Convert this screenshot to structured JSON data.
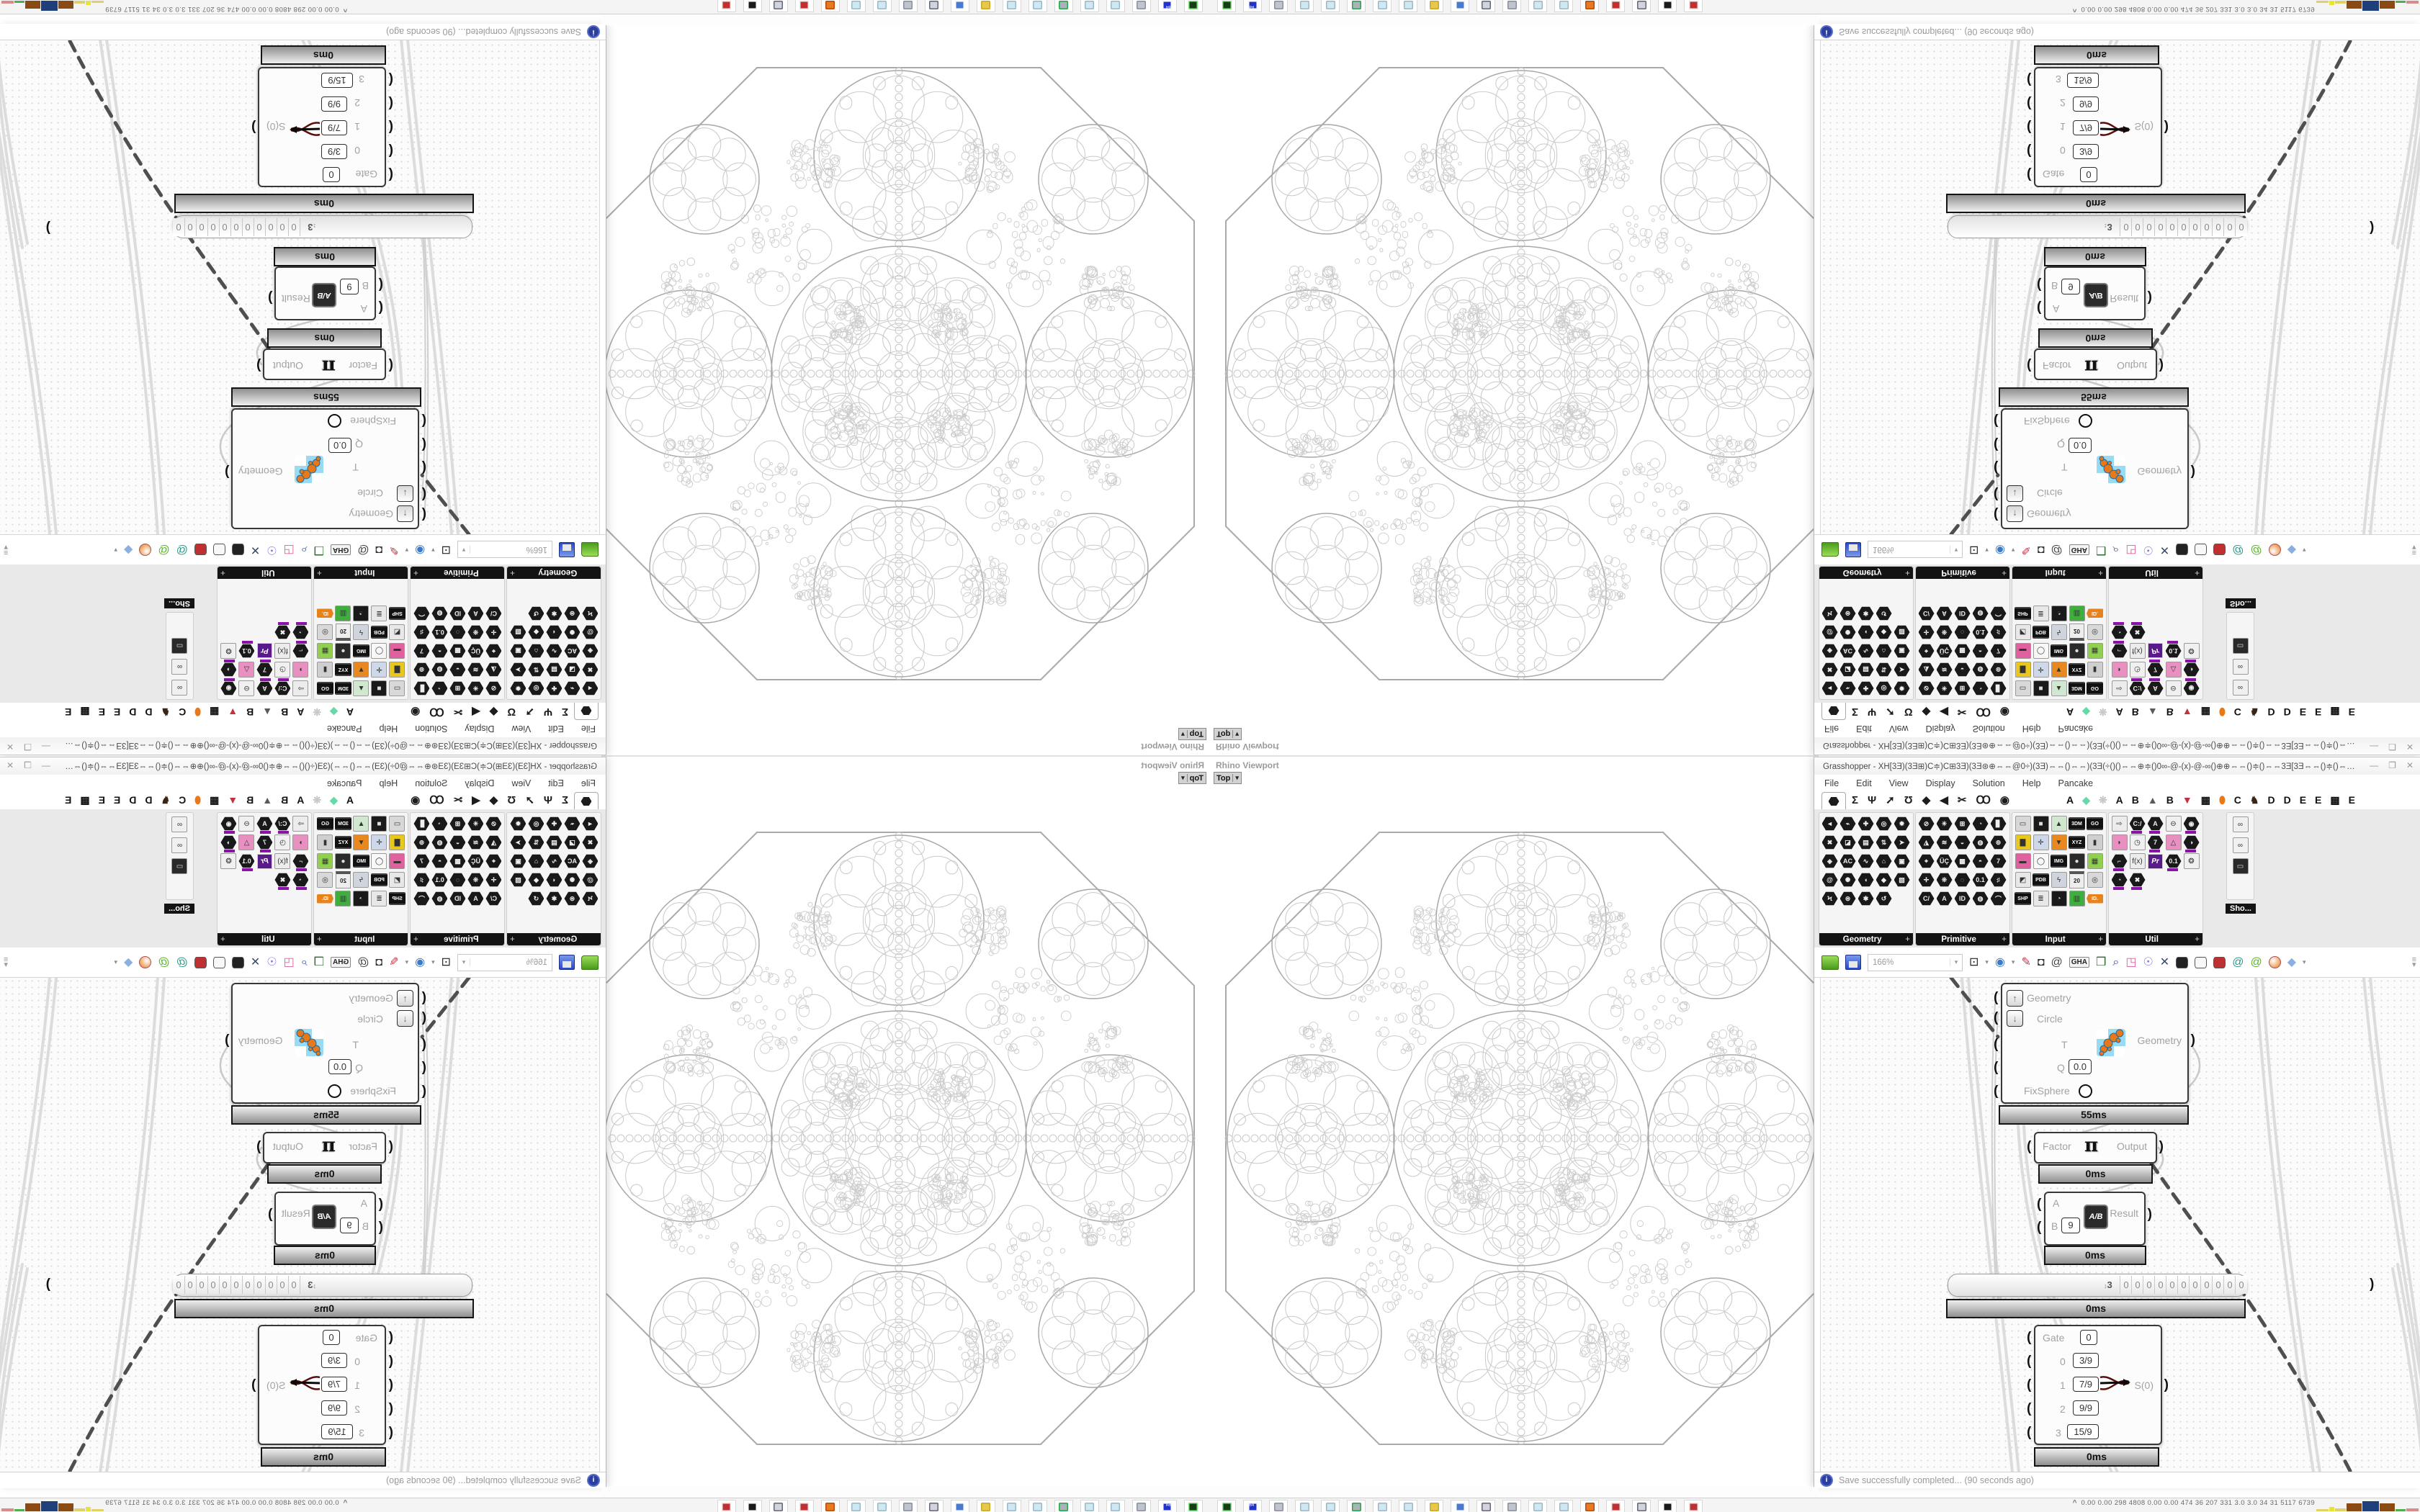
{
  "colors": {
    "accent_orange": "#e8791a",
    "wire_dash": "#4f4f4f",
    "wire_light": "#dcdcdc",
    "fractal_stroke": "#c9c9c9",
    "fractal_bold": "#a9a9a9",
    "fractal_cloud": "#cccccc",
    "info_blue": "#2b3f9e"
  },
  "viewport": {
    "title": "Rhino Viewport",
    "mode": "Top",
    "dropdown_icon": "▾"
  },
  "grasshopper": {
    "title": "Grasshopper - XH[3Ǝ)(3Ǝ⊞)C≑)C⊞3Ǝ)(3Ǝ⊛⊕⇔⇔@0÷)(3Ǝ)⇔⇔()⇔⇔)(3Ǝ(÷()()⇔⇔⊕≑()0∞-@-(x)-@-∞()⊕⊕⇔⇔()≑()⇔⇔3Ǝ[3Ǝ⇔⇔()≑()⇔⇔⊕÷()0-@(x)@-∞()⊕⊕⇔⇔@0÷)(3Ǝ)⇔⇔()...",
    "window_buttons": [
      "—",
      "❐",
      "✕"
    ],
    "menu": [
      "File",
      "Edit",
      "View",
      "Display",
      "Solution",
      "Help",
      "Pancake"
    ],
    "tabs_left": [
      "Σ",
      "Ψ",
      "➚",
      "Ʊ",
      "◆",
      "◀",
      "✂",
      "Ꝏ",
      "◉"
    ],
    "tabs_right": [
      {
        "t": "A",
        "c": "#111"
      },
      {
        "t": "◆",
        "c": "#66d9a8"
      },
      {
        "t": "❋",
        "c": "#c8c8c8"
      },
      {
        "t": "A",
        "c": "#111"
      },
      {
        "t": "B",
        "c": "#111"
      },
      {
        "t": "▲",
        "c": "#5a5a5a"
      },
      {
        "t": "B",
        "c": "#111"
      },
      {
        "t": "▼",
        "c": "#c23340"
      },
      {
        "t": "▦",
        "c": "#111"
      },
      {
        "t": "⬮",
        "c": "#e8791a"
      },
      {
        "t": "C",
        "c": "#111"
      },
      {
        "t": "♞",
        "c": "#3a2414"
      },
      {
        "t": "D",
        "c": "#111"
      },
      {
        "t": "D",
        "c": "#111"
      },
      {
        "t": "E",
        "c": "#111"
      },
      {
        "t": "E",
        "c": "#111"
      },
      {
        "t": "▩",
        "c": "#111"
      },
      {
        "t": "E",
        "c": "#111"
      }
    ],
    "palettes": [
      {
        "name": "Geometry",
        "add": "+",
        "icons": [
          {
            "g": "◄",
            "k": "hex"
          },
          {
            "g": "⌁",
            "k": "hex"
          },
          {
            "g": "✚",
            "k": "hex"
          },
          {
            "g": "◎",
            "k": "hex"
          },
          {
            "g": "✹",
            "k": "hex"
          },
          {
            "g": "✖",
            "k": "hex"
          },
          {
            "g": "◪",
            "k": "hex"
          },
          {
            "g": "▤",
            "k": "hex"
          },
          {
            "g": "⇅",
            "k": "hex"
          },
          {
            "g": "➤",
            "k": "hex"
          },
          {
            "g": "◈",
            "k": "hex"
          },
          {
            "g": "AC",
            "k": "hex"
          },
          {
            "g": "∿",
            "k": "hex"
          },
          {
            "g": "⌂",
            "k": "hex"
          },
          {
            "g": "▣",
            "k": "hex"
          },
          {
            "g": "@",
            "k": "hex"
          },
          {
            "g": "✺",
            "k": "hex"
          },
          {
            "g": "◖",
            "k": "hex"
          },
          {
            "g": "◆",
            "k": "hex"
          },
          {
            "g": "▧",
            "k": "hex"
          },
          {
            "g": "Ϟ",
            "k": "hex"
          },
          {
            "g": "⊜",
            "k": "hex"
          },
          {
            "g": "✱",
            "k": "hex"
          },
          {
            "g": "↺",
            "k": "hex"
          }
        ]
      },
      {
        "name": "Primitive",
        "add": "+",
        "icons": [
          {
            "g": "⊘",
            "k": "hex"
          },
          {
            "g": "✳",
            "k": "hex"
          },
          {
            "g": "⊞",
            "k": "hex"
          },
          {
            "g": "◔",
            "k": "hex"
          },
          {
            "g": "▊",
            "k": "hex"
          },
          {
            "g": "◮",
            "k": "hex"
          },
          {
            "g": "≋",
            "k": "hex"
          },
          {
            "g": "◒",
            "k": "hex"
          },
          {
            "g": "◍",
            "k": "hex"
          },
          {
            "g": "⊚",
            "k": "hex"
          },
          {
            "g": "⌖",
            "k": "hex"
          },
          {
            "g": "ÜÇ",
            "k": "hex"
          },
          {
            "g": "▩",
            "k": "hex"
          },
          {
            "g": "◓",
            "k": "hex"
          },
          {
            "g": "7",
            "k": "hex"
          },
          {
            "g": "✛",
            "k": "hex"
          },
          {
            "g": "❊",
            "k": "hex"
          },
          {
            "g": "◌",
            "k": "hex"
          },
          {
            "g": "0.1",
            "k": "hex"
          },
          {
            "g": "♯",
            "k": "hex"
          },
          {
            "g": "C/",
            "k": "hex"
          },
          {
            "g": "A",
            "k": "hex"
          },
          {
            "g": "ID",
            "k": "hex"
          },
          {
            "g": "◍",
            "k": "hex"
          },
          {
            "g": "⌒",
            "k": "hex"
          }
        ]
      },
      {
        "name": "Input",
        "add": "+",
        "icons": [
          {
            "g": "▭",
            "k": "sq",
            "c": "#d8d8d8"
          },
          {
            "g": "■",
            "k": "sq",
            "c": "#1a1a1a"
          },
          {
            "g": "▲",
            "k": "sq",
            "c": "#cfe8cf"
          },
          {
            "g": "3DM",
            "k": "chip"
          },
          {
            "g": "GO",
            "k": "chip"
          },
          {
            "g": "▇",
            "k": "sq",
            "c": "#e8c71f"
          },
          {
            "g": "✛",
            "k": "sq",
            "c": "#cfd8e8"
          },
          {
            "g": "▼",
            "k": "sq",
            "c": "#e8881f"
          },
          {
            "g": "XYZ",
            "k": "chip"
          },
          {
            "g": "▮",
            "k": "sq",
            "c": "#cfcfcf"
          },
          {
            "g": "▬",
            "k": "sq",
            "c": "#e060a0"
          },
          {
            "g": "◯",
            "k": "sq",
            "c": "#f8f8f8"
          },
          {
            "g": "IMG",
            "k": "chip"
          },
          {
            "g": "●",
            "k": "sq",
            "c": "#2a2a2a"
          },
          {
            "g": "▦",
            "k": "sq",
            "c": "#8fd04f"
          },
          {
            "g": "◩",
            "k": "sq",
            "c": "#e8e8e8"
          },
          {
            "g": "PDB",
            "k": "chip"
          },
          {
            "g": "ϟ",
            "k": "sq",
            "c": "#d0d4dc"
          },
          {
            "g": "20",
            "k": "cal"
          },
          {
            "g": "◎",
            "k": "sq",
            "c": "#d8d8d8"
          },
          {
            "g": "SHP",
            "k": "chip"
          },
          {
            "g": "≣",
            "k": "sq",
            "c": "#e8e8e8"
          },
          {
            "g": "◔",
            "k": "sq",
            "c": "#1a1a1a"
          },
          {
            "g": "▥",
            "k": "sq",
            "c": "#3fae3f"
          },
          {
            "g": "ID.",
            "k": "chipo"
          }
        ]
      },
      {
        "name": "Util",
        "add": "+",
        "icons": [
          {
            "g": "⇨",
            "k": "sq",
            "c": "#ececec"
          },
          {
            "g": "C:/",
            "k": "hexp"
          },
          {
            "g": "A",
            "k": "hexp"
          },
          {
            "g": "⊖",
            "k": "sq",
            "c": "#f0f0f0"
          },
          {
            "g": "◉",
            "k": "hexp"
          },
          {
            "g": "◗",
            "k": "sq",
            "c": "#e890c0"
          },
          {
            "g": "◷",
            "k": "sq",
            "c": "#f0f0f0"
          },
          {
            "g": "7",
            "k": "hexp"
          },
          {
            "g": "△",
            "k": "sq",
            "c": "#e890c0"
          },
          {
            "g": "◑",
            "k": "hexp"
          },
          {
            "g": "⌐",
            "k": "hexp"
          },
          {
            "g": "f(x)",
            "k": "sq",
            "c": "#ececec"
          },
          {
            "g": "Pr",
            "k": "pr"
          },
          {
            "g": "0.1",
            "k": "hexp"
          },
          {
            "g": "❂",
            "k": "sq",
            "c": "#f0f0f0"
          },
          {
            "g": "◔",
            "k": "hexp"
          },
          {
            "g": "✖",
            "k": "hexp"
          }
        ]
      }
    ],
    "show_panel": {
      "label": "Sho...",
      "icons": [
        {
          "g": "∞",
          "k": "sq",
          "c": "#f0f0f0"
        },
        {
          "g": "∞",
          "k": "sq",
          "c": "#f0f0f0"
        },
        {
          "g": "▭",
          "k": "sq",
          "c": "#2a2a2a"
        }
      ]
    },
    "toolbar": {
      "zoom": "166%",
      "icons": [
        {
          "name": "zoom-extents-icon",
          "g": "⊡",
          "c": "#222"
        },
        {
          "name": "caret-icon",
          "g": "▾",
          "small": true
        },
        {
          "name": "preview-eye-icon",
          "g": "◉",
          "c": "#3a7ac8"
        },
        {
          "name": "caret-icon",
          "g": "▾",
          "small": true
        },
        {
          "name": "sketch-pen-icon",
          "g": "✎",
          "c": "#c23340"
        },
        {
          "name": "ink-bottle-icon",
          "g": "◘",
          "c": "#333"
        },
        {
          "name": "rewire-icon",
          "g": "@",
          "c": "#444"
        },
        {
          "name": "gha-icon",
          "g": "GHA",
          "gha": true
        },
        {
          "name": "window-image-icon",
          "g": "❒",
          "c": "#2a6a2a"
        },
        {
          "name": "finder-icon",
          "g": "⌕",
          "c": "#334a9a"
        },
        {
          "name": "gift-box-icon",
          "g": "◳",
          "c": "#e060a0"
        },
        {
          "name": "bulb-icon",
          "g": "☉",
          "c": "#8a7ae0"
        },
        {
          "name": "wire-display-icon",
          "g": "✕",
          "c": "#3a4a6a"
        },
        {
          "name": "preview-off-icon",
          "k": "cyl",
          "c": "#222"
        },
        {
          "name": "preview-wire-icon",
          "k": "cyl",
          "c": "#f8f8f8"
        },
        {
          "name": "preview-shaded-icon",
          "k": "cyl",
          "c": "#c03030"
        },
        {
          "name": "swirl-teal-icon",
          "g": "@",
          "c": "#2a9a8a"
        },
        {
          "name": "swirl-green-icon",
          "g": "@",
          "c": "#5ab52a"
        },
        {
          "name": "sphere-orange-icon",
          "k": "ball",
          "c": "#e8791a"
        },
        {
          "name": "poly-blue-icon",
          "g": "◆",
          "c": "#8ab0e0"
        },
        {
          "name": "caret-icon",
          "g": "▾",
          "small": true
        }
      ],
      "corner_widget": [
        "≡",
        "▾"
      ]
    },
    "status": {
      "text": "Save successfully completed... (90 seconds ago)"
    },
    "canvas": {
      "geometry_node": {
        "up_icon": "↑",
        "down_icon": "↓",
        "rows": [
          {
            "label": "Geometry"
          },
          {
            "label": "Circle"
          },
          {
            "label": "T"
          },
          {
            "label": "Q",
            "value": "0.0"
          },
          {
            "label": "FixSphere"
          }
        ],
        "output": "Geometry",
        "time": "55ms"
      },
      "factor_node": {
        "input": "Factor",
        "symbol": "π",
        "output": "Output",
        "time": "0ms"
      },
      "division_node": {
        "a": "A",
        "b": "B",
        "b_value": "9",
        "icon": "A/B",
        "output": "Result",
        "time": "0ms"
      },
      "slider": {
        "lead": "3",
        "digits": [
          "0",
          "0",
          "0",
          "0",
          "0",
          "0",
          "0",
          "0",
          "0",
          "0",
          "0"
        ],
        "time": "0ms"
      },
      "gate_node": {
        "header": "Gate",
        "header_value": "0",
        "rows": [
          {
            "label": "0",
            "value": "3/9"
          },
          {
            "label": "1",
            "value": "7/9"
          },
          {
            "label": "2",
            "value": "9/9"
          },
          {
            "label": "3",
            "value": "15/9"
          }
        ],
        "output": "S(0)",
        "time": "0ms"
      }
    }
  },
  "taskbar": {
    "icons": [
      {
        "name": "console-icon",
        "c": "#163d16",
        "d": "#7de87d",
        "t": ""
      },
      {
        "name": "floppy64-icon",
        "c": "#2233cc",
        "d": "#fff",
        "t": "64"
      },
      {
        "name": "scroll-icon",
        "c": "#c0c4cc",
        "d": "#8890a0",
        "t": ""
      },
      {
        "name": "notepad-icon",
        "c": "#cfe8f2",
        "d": "#9ab8c8",
        "t": ""
      },
      {
        "name": "notepad-icon",
        "c": "#cfe8f2",
        "d": "#9ab8c8",
        "t": ""
      },
      {
        "name": "monitor-icon",
        "c": "#aab2ba",
        "d": "#22aa44",
        "t": ""
      },
      {
        "name": "notepad-icon",
        "c": "#cfe8f2",
        "d": "#9ab8c8",
        "t": ""
      },
      {
        "name": "notepad-icon",
        "c": "#cfe8f2",
        "d": "#9ab8c8",
        "t": ""
      },
      {
        "name": "folder-icon",
        "c": "#e8c84a",
        "d": "#c8a82a",
        "t": ""
      },
      {
        "name": "pc-icon",
        "c": "#4a7ad0",
        "d": "#fff",
        "t": ""
      },
      {
        "name": "calculator-icon",
        "c": "#d0d4dc",
        "d": "#667",
        "t": ""
      },
      {
        "name": "scroll-icon",
        "c": "#c0c4cc",
        "d": "#8890a0",
        "t": ""
      },
      {
        "name": "notepad-icon",
        "c": "#cfe8f2",
        "d": "#9ab8c8",
        "t": ""
      },
      {
        "name": "notepad-icon",
        "c": "#cfe8f2",
        "d": "#9ab8c8",
        "t": ""
      },
      {
        "name": "firefox-icon",
        "c": "#e87a1f",
        "d": "#b84a0f",
        "t": ""
      },
      {
        "name": "badge-icon",
        "c": "#c03030",
        "d": "#e8e8e8",
        "t": ""
      },
      {
        "name": "calculator-icon",
        "c": "#d0d4dc",
        "d": "#667",
        "t": ""
      },
      {
        "name": "swan-icon",
        "c": "#1a1a1a",
        "d": "#fff",
        "t": ""
      },
      {
        "name": "badge-icon",
        "c": "#c03030",
        "d": "#e8e8e8",
        "t": ""
      }
    ],
    "monitor": {
      "caret": "^",
      "values": "0.00 0.00  298  4808 0.00 0.00  474    36    207   331    3.0    3.0    34     31   5117 6739",
      "bars": [
        {
          "c": "#ddd36a",
          "w": 22,
          "h": 3
        },
        {
          "c": "#e8e23a",
          "w": 8,
          "h": 6
        },
        {
          "c": "#ddd36a",
          "w": 20,
          "h": 4
        },
        {
          "c": "#8a4a14",
          "w": 26,
          "h": 11
        },
        {
          "c": "#1e3f7a",
          "w": 30,
          "h": 14
        },
        {
          "c": "#8a4a14",
          "w": 26,
          "h": 11
        },
        {
          "c": "#4fae4f",
          "w": 18,
          "h": 3
        },
        {
          "c": "#d98a8a",
          "w": 22,
          "h": 4
        }
      ]
    }
  }
}
